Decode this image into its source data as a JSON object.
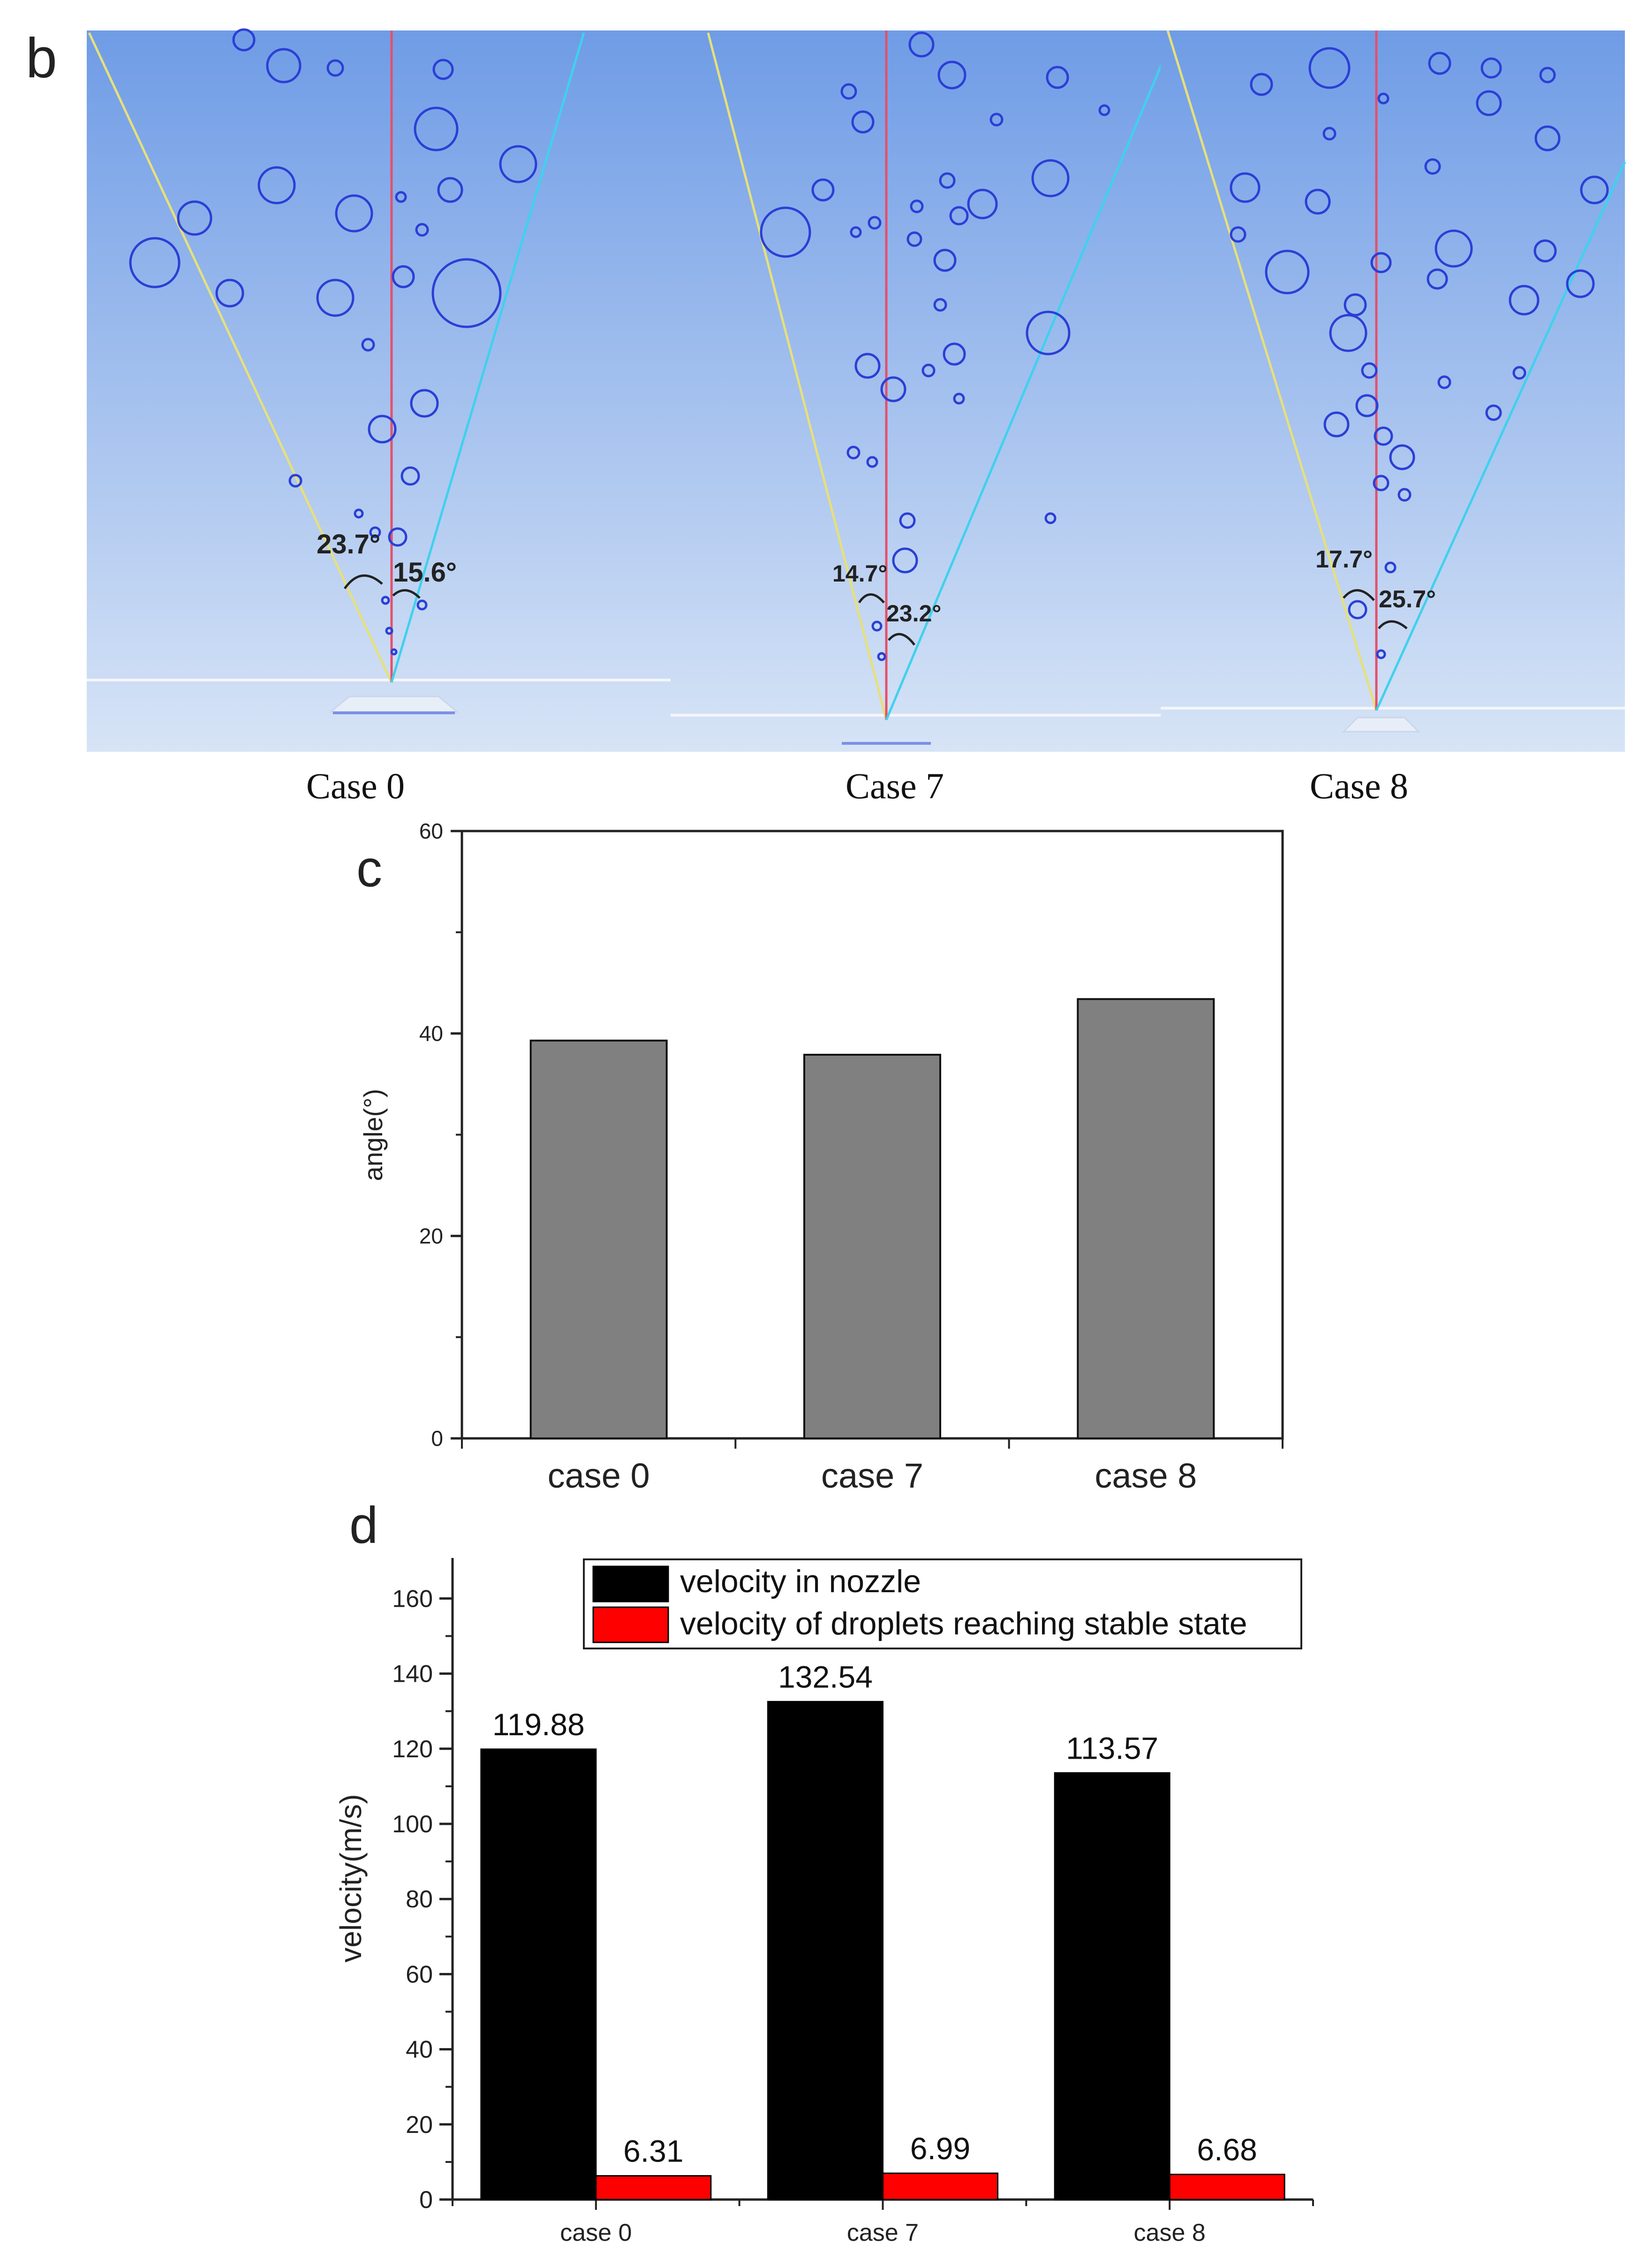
{
  "panel_b": {
    "letter": "b",
    "cases": [
      {
        "caption": "Case 0",
        "left_angle": "23.7°",
        "right_angle": "15.6°"
      },
      {
        "caption": "Case 7",
        "left_angle": "14.7°",
        "right_angle": "23.2°"
      },
      {
        "caption": "Case 8",
        "left_angle": "17.7°",
        "right_angle": "25.7°"
      }
    ],
    "colors": {
      "sky_top": "#6f9ce6",
      "sky_bottom": "#d7e4f6",
      "droplet": "#2b3fd6",
      "left_line": "#e6e07a",
      "center_line": "#e4506a",
      "right_line": "#3fd1ee"
    }
  },
  "chart_data": [
    {
      "panel": "c",
      "letter": "c",
      "type": "bar",
      "categories": [
        "case 0",
        "case 7",
        "case 8"
      ],
      "values": [
        39.3,
        37.9,
        43.4
      ],
      "title": "",
      "xlabel": "",
      "ylabel": "angle(°)",
      "ylim": [
        0,
        60
      ],
      "yticks": [
        "0",
        "20",
        "40",
        "60"
      ],
      "bar_color": "#808080",
      "grid": false
    },
    {
      "panel": "d",
      "letter": "d",
      "type": "bar",
      "categories": [
        "case 0",
        "case 7",
        "case 8"
      ],
      "series": [
        {
          "name": "velocity in nozzle",
          "values": [
            119.88,
            132.54,
            113.57
          ],
          "labels": [
            "119.88",
            "132.54",
            "113.57"
          ],
          "color": "#000000"
        },
        {
          "name": "velocity of droplets reaching stable state",
          "values": [
            6.31,
            6.99,
            6.68
          ],
          "labels": [
            "6.31",
            "6.99",
            "6.68"
          ],
          "color": "#ff0000"
        }
      ],
      "title": "",
      "xlabel": "",
      "ylabel": "velocity(m/s)",
      "ylim": [
        0,
        170
      ],
      "yticks": [
        "0",
        "20",
        "40",
        "60",
        "80",
        "100",
        "120",
        "140",
        "160"
      ],
      "legend": "top-center",
      "grid": false
    }
  ]
}
